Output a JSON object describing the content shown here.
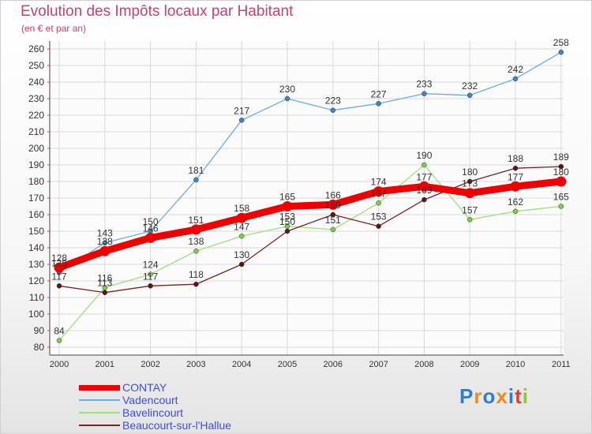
{
  "title": "Evolution des Impôts locaux par Habitant",
  "subtitle": "(en € et par an)",
  "logo": {
    "text": "Proxiti",
    "colors": [
      "#2a7fd4",
      "#f08a1c",
      "#2a7fd4",
      "#f08a1c",
      "#2a7fd4",
      "#e8392c",
      "#8cc63f"
    ]
  },
  "chart_data": {
    "type": "line",
    "title": "Evolution des Impôts locaux par Habitant",
    "subtitle": "(en € et par an)",
    "xlabel": "",
    "ylabel": "",
    "x": [
      "2000",
      "2001",
      "2002",
      "2003",
      "2004",
      "2005",
      "2006",
      "2007",
      "2008",
      "2009",
      "2010",
      "2011"
    ],
    "ylim": [
      80,
      260
    ],
    "yticks": [
      80,
      90,
      100,
      110,
      120,
      130,
      140,
      150,
      160,
      170,
      180,
      190,
      200,
      210,
      220,
      230,
      240,
      250,
      260
    ],
    "grid": true,
    "legend_position": "bottom-left",
    "series": [
      {
        "name": "CONTAY",
        "color": "#ee0000",
        "marker": "#ee0000",
        "emphasis": true,
        "values": [
          128,
          138,
          146,
          151,
          158,
          165,
          166,
          174,
          177,
          173,
          177,
          180
        ],
        "labels": [
          "128",
          "138",
          "146",
          "151",
          "158",
          "165",
          "166",
          "174",
          "177",
          "173",
          "177",
          "180"
        ]
      },
      {
        "name": "Vadencourt",
        "color": "#6aaee0",
        "marker": "#3d86c6",
        "emphasis": false,
        "values": [
          125,
          143,
          150,
          181,
          217,
          230,
          223,
          227,
          233,
          232,
          242,
          258
        ],
        "labels": [
          "125",
          "143",
          "150",
          "181",
          "217",
          "230",
          "223",
          "227",
          "233",
          "232",
          "242",
          "258"
        ]
      },
      {
        "name": "Bavelincourt",
        "color": "#9fe07a",
        "marker": "#7dcc4a",
        "emphasis": false,
        "values": [
          84,
          116,
          124,
          138,
          147,
          153,
          151,
          167,
          190,
          157,
          162,
          165
        ],
        "labels": [
          "84",
          "116",
          "124",
          "138",
          "147",
          "153",
          "151",
          "167",
          "190",
          "157",
          "162",
          "165"
        ]
      },
      {
        "name": "Beaucourt-sur-l'Hallue",
        "color": "#7a2323",
        "marker": "#5c1414",
        "emphasis": false,
        "values": [
          117,
          113,
          117,
          118,
          130,
          150,
          160,
          153,
          169,
          180,
          188,
          189
        ],
        "labels": [
          "117",
          "113",
          "117",
          "118",
          "130",
          "150",
          "160",
          "153",
          "169",
          "180",
          "188",
          "189"
        ]
      }
    ]
  }
}
